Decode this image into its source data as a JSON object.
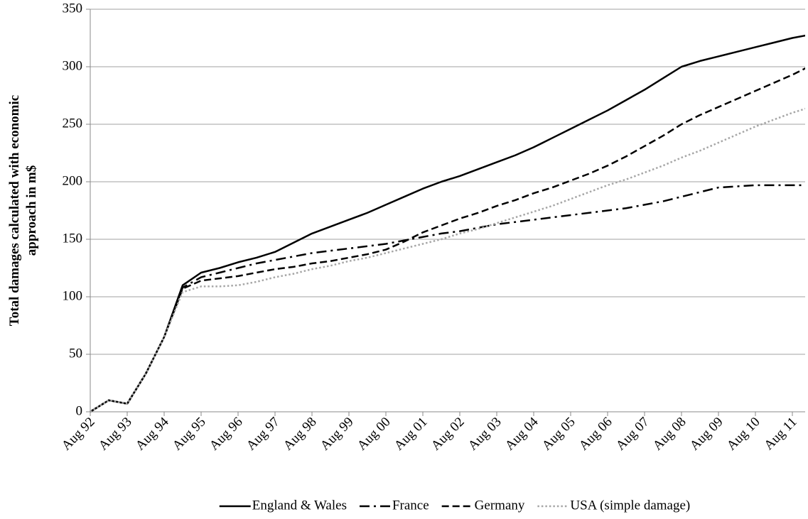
{
  "chart_data": {
    "type": "line",
    "y_label": [
      "Total damages calculated with economic",
      "approach in m$"
    ],
    "categories": [
      "Aug 92",
      null,
      "Aug 93",
      null,
      "Aug 94",
      null,
      "Aug 95",
      null,
      "Aug 96",
      null,
      "Aug 97",
      null,
      "Aug 98",
      null,
      "Aug 99",
      null,
      "Aug 00",
      null,
      "Aug 01",
      null,
      "Aug 02",
      null,
      "Aug 03",
      null,
      "Aug 04",
      null,
      "Aug 05",
      null,
      "Aug 06",
      null,
      "Aug 07",
      null,
      "Aug 08",
      null,
      "Aug 09",
      null,
      "Aug 10",
      null,
      "Aug 11",
      null
    ],
    "series": [
      {
        "name": "England & Wales",
        "color": "#000000",
        "dash": "solid",
        "values": [
          0,
          10,
          7,
          33,
          65,
          110,
          121,
          125,
          130,
          134,
          139,
          147,
          155,
          161,
          167,
          173,
          180,
          187,
          194,
          200,
          205,
          211,
          217,
          223,
          230,
          238,
          246,
          254,
          262,
          271,
          280,
          290,
          300,
          305,
          309,
          313,
          317,
          321,
          325,
          328
        ]
      },
      {
        "name": "France",
        "color": "#000000",
        "dash": "dashdot",
        "values": [
          0,
          10,
          7,
          33,
          65,
          108,
          117,
          121,
          125,
          129,
          132,
          135,
          138,
          140,
          142,
          144,
          146,
          149,
          152,
          155,
          157,
          160,
          163,
          165,
          167,
          169,
          171,
          173,
          175,
          177,
          180,
          183,
          187,
          191,
          195,
          196,
          197,
          197,
          197,
          197
        ]
      },
      {
        "name": "Germany",
        "color": "#000000",
        "dash": "dashed",
        "values": [
          0,
          10,
          7,
          33,
          65,
          107,
          114,
          116,
          118,
          121,
          124,
          126,
          129,
          131,
          134,
          137,
          141,
          148,
          156,
          162,
          168,
          173,
          179,
          184,
          190,
          195,
          201,
          207,
          214,
          222,
          231,
          240,
          250,
          258,
          265,
          272,
          279,
          286,
          293,
          301
        ]
      },
      {
        "name": "USA (simple damage)",
        "color": "#a6a6a6",
        "dash": "dotted",
        "values": [
          0,
          10,
          7,
          33,
          65,
          104,
          109,
          109,
          110,
          113,
          117,
          120,
          124,
          127,
          131,
          134,
          138,
          142,
          146,
          150,
          155,
          159,
          164,
          169,
          174,
          179,
          185,
          191,
          197,
          202,
          208,
          214,
          221,
          227,
          234,
          241,
          248,
          254,
          260,
          265
        ]
      }
    ],
    "ylim": [
      0,
      350
    ],
    "yticks": [
      0,
      50,
      100,
      150,
      200,
      250,
      300,
      350
    ],
    "grid": true,
    "legend": "bottom"
  }
}
